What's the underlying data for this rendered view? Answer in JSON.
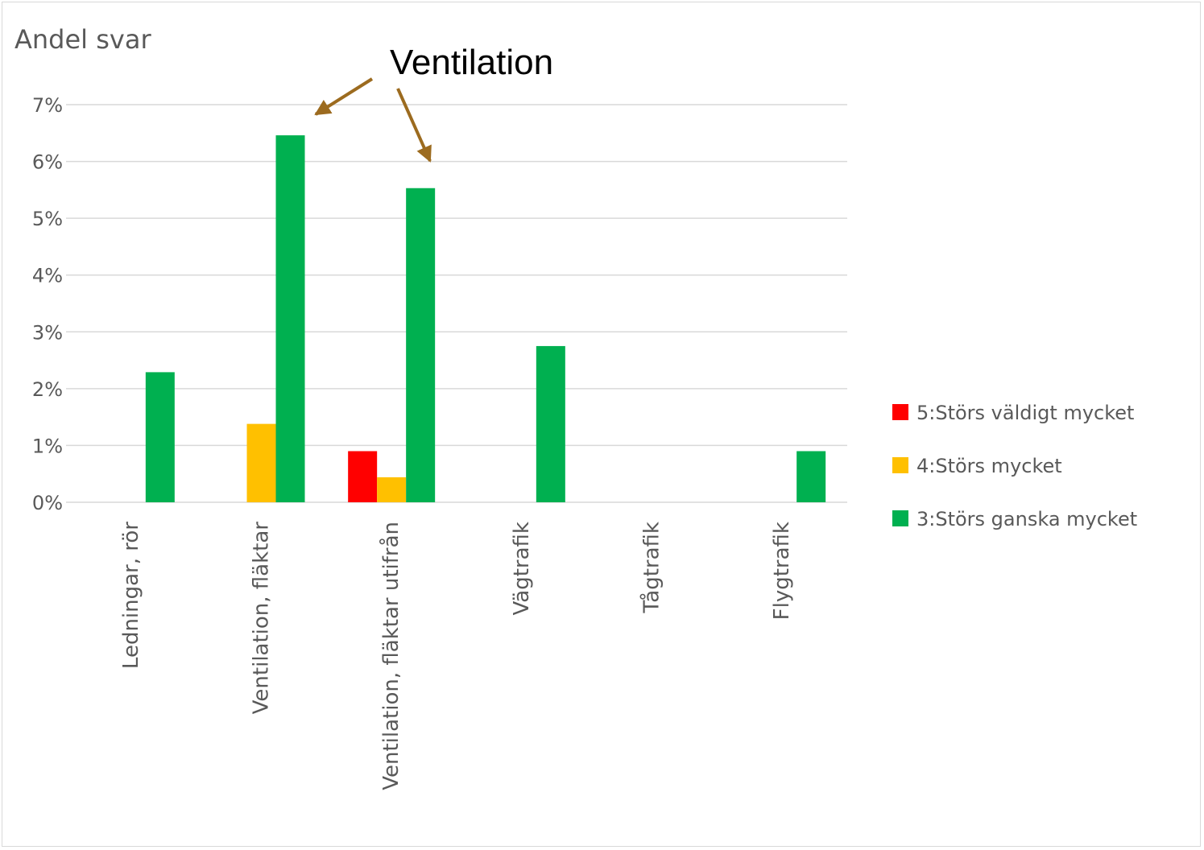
{
  "chart_data": {
    "type": "bar",
    "title": "",
    "ylabel": "Andel svar",
    "xlabel": "",
    "categories": [
      "Ledningar, rör",
      "Ventilation, fläktar",
      "Ventilation, fläktar utifrån",
      "Vägtrafik",
      "Tågtrafik",
      "Flygtrafik"
    ],
    "series": [
      {
        "name": "5:Störs väldigt mycket",
        "color": "#ff0000",
        "values": [
          0,
          0,
          0.9,
          0,
          0,
          0
        ]
      },
      {
        "name": "4:Störs mycket",
        "color": "#ffc000",
        "values": [
          0,
          1.38,
          0.44,
          0,
          0,
          0
        ]
      },
      {
        "name": "3:Störs ganska mycket",
        "color": "#00b050",
        "values": [
          2.29,
          6.46,
          5.53,
          2.75,
          0,
          0.9
        ]
      }
    ],
    "ylim": [
      0,
      7
    ],
    "yticks": [
      0,
      1,
      2,
      3,
      4,
      5,
      6,
      7
    ],
    "ytick_labels": [
      "0%",
      "1%",
      "2%",
      "3%",
      "4%",
      "5%",
      "6%",
      "7%"
    ],
    "grid": true,
    "legend_position": "right",
    "annotation": {
      "text": "Ventilation",
      "color": "#9c6b1f",
      "points_to": [
        "Ventilation, fläktar",
        "Ventilation, fläktar utifrån"
      ]
    }
  }
}
